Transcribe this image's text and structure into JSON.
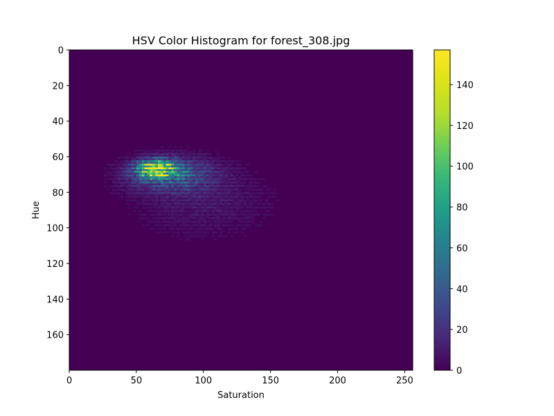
{
  "chart_data": {
    "type": "heatmap",
    "title": "HSV Color Histogram for forest_308.jpg",
    "xlabel": "Saturation",
    "ylabel": "Hue",
    "xlim": [
      0,
      256
    ],
    "ylim": [
      180,
      0
    ],
    "y_inverted": true,
    "x_ticks": [
      "0",
      "50",
      "100",
      "150",
      "200",
      "250"
    ],
    "y_ticks": [
      "0",
      "20",
      "40",
      "60",
      "80",
      "100",
      "120",
      "140",
      "160"
    ],
    "colormap": "viridis",
    "colorbar": {
      "range": [
        0,
        157
      ],
      "ticks": [
        "0",
        "20",
        "40",
        "60",
        "80",
        "100",
        "120",
        "140"
      ]
    },
    "background_color": "#440154",
    "peak": {
      "hue": 67,
      "saturation": 65,
      "count": 157
    },
    "description_of_density": [
      {
        "hue_range": [
          55,
          75
        ],
        "saturation_range": [
          45,
          95
        ],
        "level": "high"
      },
      {
        "hue_range": [
          60,
          115
        ],
        "saturation_range": [
          25,
          175
        ],
        "level": "low"
      }
    ]
  }
}
